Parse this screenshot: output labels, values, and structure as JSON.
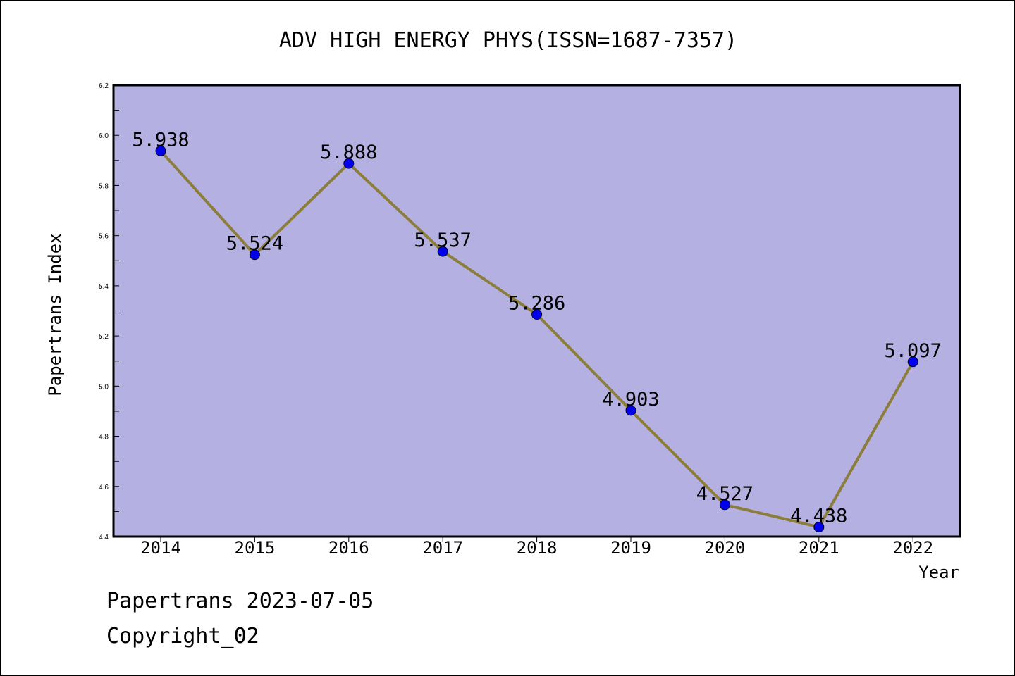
{
  "chart_data": {
    "type": "line",
    "title": "ADV HIGH ENERGY PHYS(ISSN=1687-7357)",
    "xlabel": "Year",
    "ylabel": "Papertrans Index",
    "categories": [
      "2014",
      "2015",
      "2016",
      "2017",
      "2018",
      "2019",
      "2020",
      "2021",
      "2022"
    ],
    "values": [
      5.938,
      5.524,
      5.888,
      5.537,
      5.286,
      4.903,
      4.527,
      4.438,
      5.097
    ],
    "data_labels": [
      "5.938",
      "5.524",
      "5.888",
      "5.537",
      "5.286",
      "4.903",
      "4.527",
      "4.438",
      "5.097"
    ],
    "ylim": [
      4.4,
      6.2
    ],
    "yticks": [
      "4.4",
      "4.6",
      "4.8",
      "5.0",
      "5.2",
      "5.4",
      "5.6",
      "5.8",
      "6.0",
      "6.2"
    ],
    "grid": false,
    "colors": {
      "plot_background": "#b5b0e2",
      "line": "#8b7d3a",
      "marker": "#0000ee"
    }
  },
  "footer": {
    "date_line": "Papertrans 2023-07-05",
    "copyright": "Copyright_02"
  }
}
